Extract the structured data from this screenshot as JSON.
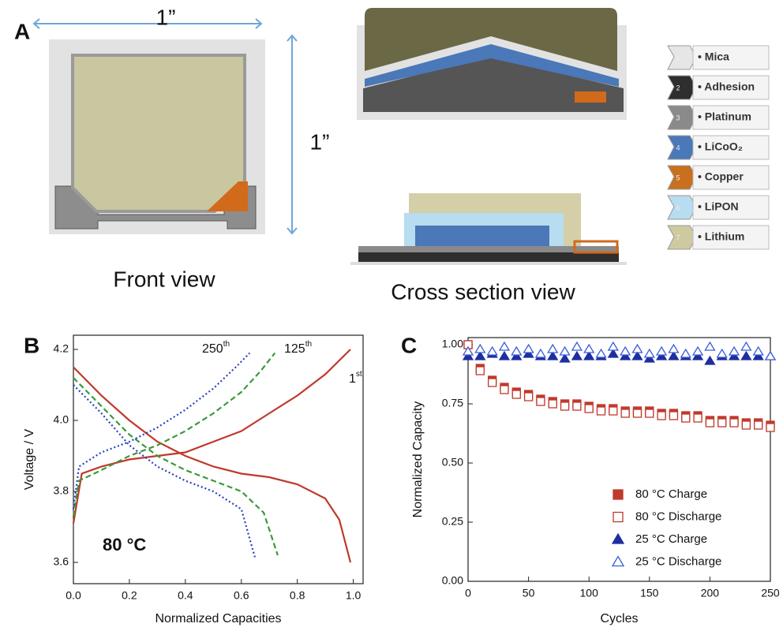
{
  "panel_a": {
    "label": "A",
    "width_label": "1”",
    "height_label": "1”",
    "front_caption": "Front view",
    "cross_caption": "Cross section view",
    "layers": [
      {
        "number": "1",
        "name": "• Mica",
        "color": "#e6e6e6"
      },
      {
        "number": "2",
        "name": "• Adhesion",
        "color": "#2e2e2e"
      },
      {
        "number": "3",
        "name": "• Platinum",
        "color": "#8a8a8a"
      },
      {
        "number": "4",
        "name": "• LiCoO₂",
        "color": "#4a78b8"
      },
      {
        "number": "5",
        "name": "• Copper",
        "color": "#c8701e"
      },
      {
        "number": "6",
        "name": "• LiPON",
        "color": "#b8dcf0"
      },
      {
        "number": "7",
        "name": "• Lithium",
        "color": "#cfc9a0"
      }
    ]
  },
  "chart_data": [
    {
      "type": "line",
      "panel_label": "B",
      "xlabel": "Normalized Capacities",
      "ylabel": "Voltage / V",
      "xlim": [
        0,
        1.035
      ],
      "ylim": [
        3.54,
        4.24
      ],
      "xticks": [
        {
          "value": 0,
          "label": "0.0"
        },
        0.2,
        0.4,
        0.6,
        0.8,
        {
          "value": 1,
          "label": "1.0"
        }
      ],
      "yticks": [
        3.6,
        3.8,
        {
          "value": 4,
          "label": "4.0"
        },
        4.2
      ],
      "series": [
        {
          "color": "#c0392b",
          "dash": "solid",
          "x": [
            0,
            0.03,
            0.1,
            0.2,
            0.3,
            0.4,
            0.5,
            0.6,
            0.7,
            0.8,
            0.9,
            0.99
          ],
          "values": [
            3.71,
            3.85,
            3.87,
            3.89,
            3.9,
            3.91,
            3.94,
            3.97,
            4.02,
            4.07,
            4.13,
            4.2
          ]
        },
        {
          "color": "#c0392b",
          "dash": "solid",
          "x": [
            0,
            0.1,
            0.2,
            0.3,
            0.4,
            0.5,
            0.6,
            0.7,
            0.8,
            0.9,
            0.95,
            0.99
          ],
          "values": [
            4.15,
            4.07,
            4.0,
            3.94,
            3.9,
            3.87,
            3.85,
            3.84,
            3.82,
            3.78,
            3.72,
            3.6
          ]
        },
        {
          "color": "#3a9a3a",
          "dash": "dashed",
          "x": [
            0,
            0.02,
            0.1,
            0.2,
            0.3,
            0.4,
            0.5,
            0.6,
            0.67,
            0.72
          ],
          "values": [
            3.73,
            3.83,
            3.86,
            3.9,
            3.93,
            3.97,
            4.02,
            4.08,
            4.14,
            4.19
          ]
        },
        {
          "color": "#3a9a3a",
          "dash": "dashed",
          "x": [
            0,
            0.1,
            0.2,
            0.3,
            0.4,
            0.5,
            0.6,
            0.68,
            0.73
          ],
          "values": [
            4.12,
            4.04,
            3.96,
            3.9,
            3.86,
            3.83,
            3.8,
            3.74,
            3.62
          ]
        },
        {
          "color": "#2a3fc0",
          "dash": "dotted",
          "x": [
            0,
            0.02,
            0.1,
            0.2,
            0.3,
            0.4,
            0.5,
            0.58,
            0.63
          ],
          "values": [
            3.75,
            3.87,
            3.91,
            3.94,
            3.98,
            4.03,
            4.09,
            4.15,
            4.19
          ]
        },
        {
          "color": "#2a3fc0",
          "dash": "dotted",
          "x": [
            0,
            0.1,
            0.2,
            0.3,
            0.4,
            0.5,
            0.6,
            0.65
          ],
          "values": [
            4.1,
            4.02,
            3.93,
            3.87,
            3.83,
            3.8,
            3.75,
            3.61
          ]
        }
      ],
      "annotations": [
        {
          "text": "250",
          "sup": "th"
        },
        {
          "text": "125",
          "sup": "th"
        },
        {
          "text": "1",
          "sup": "st"
        },
        {
          "text": "80 °C"
        }
      ]
    },
    {
      "type": "scatter",
      "panel_label": "C",
      "xlabel": "Cycles",
      "ylabel": "Normalized Capacity",
      "xlim": [
        0,
        250
      ],
      "ylim": [
        0,
        1.03
      ],
      "xticks": [
        0,
        50,
        100,
        150,
        200,
        250
      ],
      "yticks": [
        {
          "value": 0,
          "label": "0.00"
        },
        0.25,
        {
          "value": 0.5,
          "label": "0.50"
        },
        0.75,
        {
          "value": 1,
          "label": "1.00"
        }
      ],
      "x": [
        0,
        10,
        20,
        30,
        40,
        50,
        60,
        70,
        80,
        90,
        100,
        110,
        120,
        130,
        140,
        150,
        160,
        170,
        180,
        190,
        200,
        210,
        220,
        230,
        240,
        250
      ],
      "series": [
        {
          "name": "80 °C Charge",
          "color": "#c0392b",
          "marker": "square",
          "filled": true,
          "values": [
            1.0,
            0.9,
            0.85,
            0.82,
            0.8,
            0.79,
            0.77,
            0.76,
            0.75,
            0.75,
            0.74,
            0.73,
            0.73,
            0.72,
            0.72,
            0.72,
            0.71,
            0.71,
            0.7,
            0.7,
            0.68,
            0.68,
            0.68,
            0.67,
            0.67,
            0.66
          ]
        },
        {
          "name": "80 °C Discharge",
          "color": "#c0392b",
          "marker": "square",
          "filled": false,
          "values": [
            1.0,
            0.89,
            0.84,
            0.81,
            0.79,
            0.78,
            0.76,
            0.75,
            0.74,
            0.74,
            0.73,
            0.72,
            0.72,
            0.71,
            0.71,
            0.71,
            0.7,
            0.7,
            0.69,
            0.69,
            0.67,
            0.67,
            0.67,
            0.66,
            0.66,
            0.65
          ]
        },
        {
          "name": "25 °C Charge",
          "color": "#1f2fa0",
          "marker": "triangle",
          "filled": true,
          "values": [
            0.95,
            0.95,
            0.96,
            0.95,
            0.95,
            0.96,
            0.95,
            0.95,
            0.94,
            0.95,
            0.95,
            0.95,
            0.96,
            0.95,
            0.95,
            0.94,
            0.95,
            0.95,
            0.95,
            0.95,
            0.93,
            0.95,
            0.95,
            0.95,
            0.95,
            0.95
          ]
        },
        {
          "name": "25 °C Discharge",
          "color": "#3a5fd8",
          "marker": "triangle",
          "filled": false,
          "values": [
            0.97,
            0.98,
            0.97,
            0.99,
            0.97,
            0.98,
            0.96,
            0.98,
            0.97,
            0.99,
            0.98,
            0.96,
            0.99,
            0.97,
            0.98,
            0.96,
            0.97,
            0.98,
            0.96,
            0.97,
            0.99,
            0.96,
            0.97,
            0.99,
            0.97,
            0.95
          ]
        }
      ]
    }
  ]
}
